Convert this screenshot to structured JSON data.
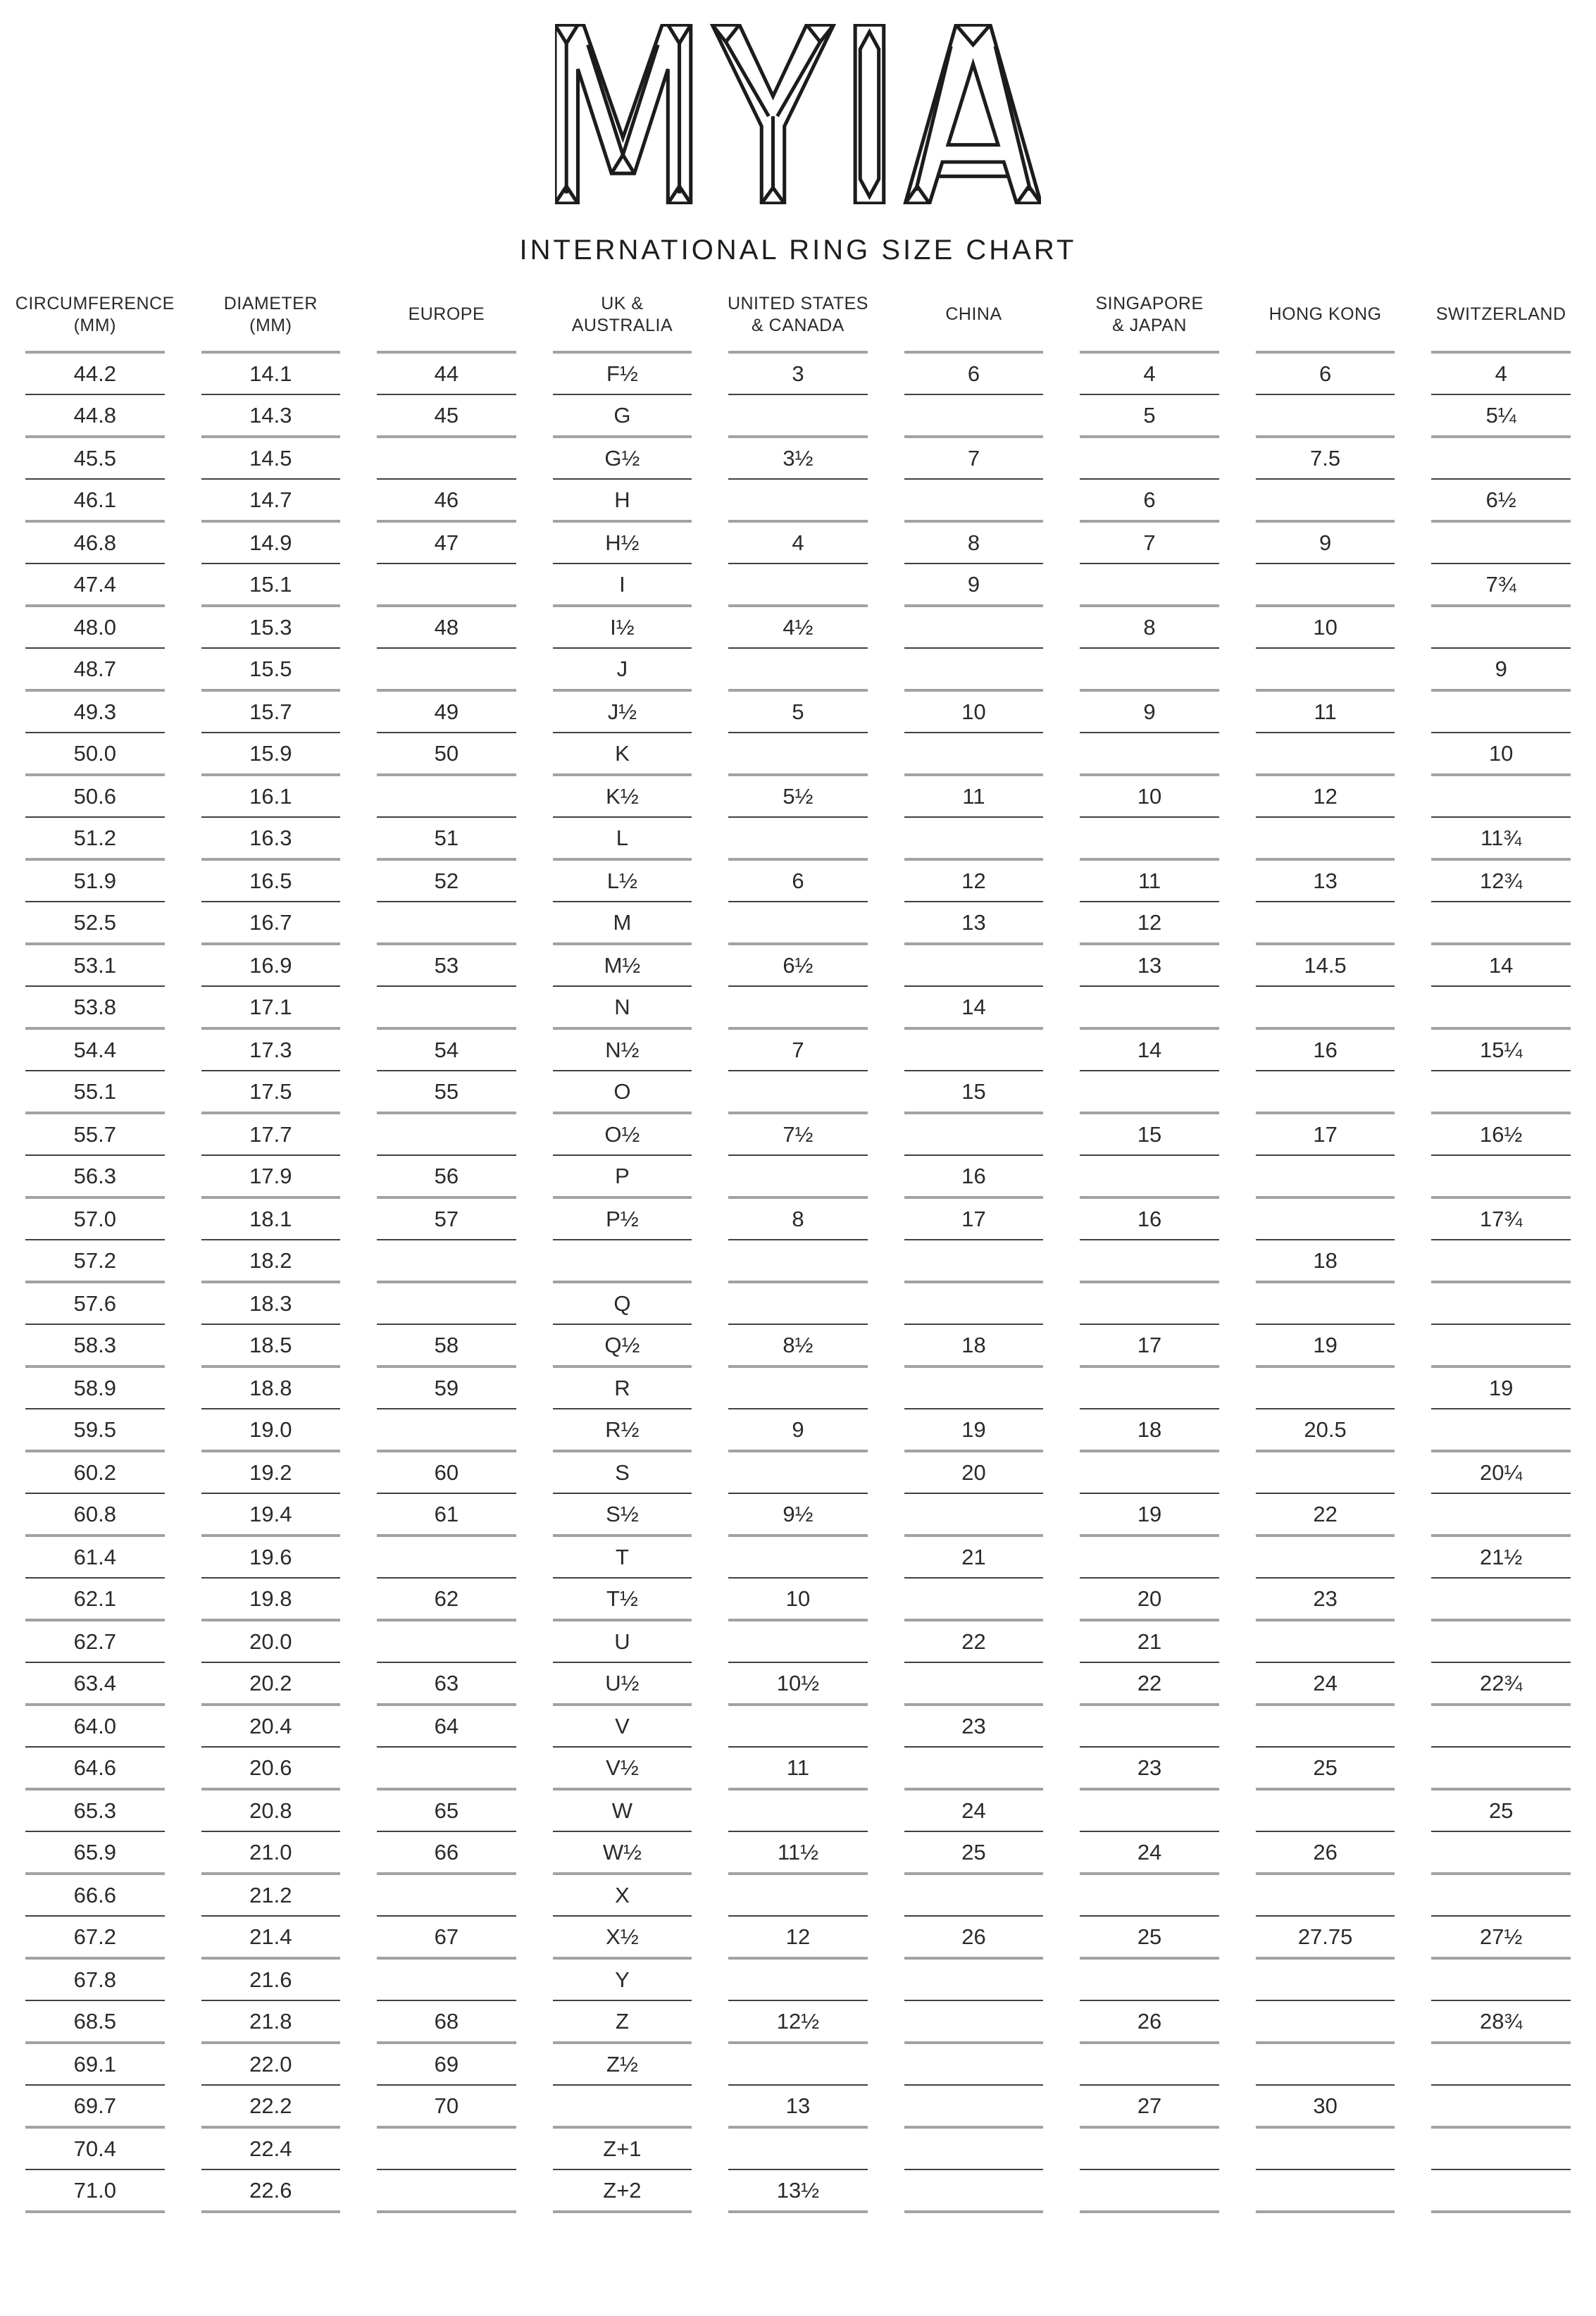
{
  "logo": {
    "brand": "MYIA",
    "title": "INTERNATIONAL RING SIZE CHART"
  },
  "table": {
    "keys": [
      "circumference_mm",
      "diameter_mm",
      "europe",
      "uk_australia",
      "us_canada",
      "china",
      "singapore_japan",
      "hong_kong",
      "switzerland"
    ],
    "headers": [
      {
        "key": "circumference_mm",
        "lines": [
          "CIRCUMFERENCE",
          "(MM)"
        ]
      },
      {
        "key": "diameter_mm",
        "lines": [
          "DIAMETER",
          "(MM)"
        ]
      },
      {
        "key": "europe",
        "lines": [
          "EUROPE"
        ]
      },
      {
        "key": "uk_australia",
        "lines": [
          "UK &",
          "AUSTRALIA"
        ]
      },
      {
        "key": "us_canada",
        "lines": [
          "UNITED STATES",
          "& CANADA"
        ]
      },
      {
        "key": "china",
        "lines": [
          "CHINA"
        ]
      },
      {
        "key": "singapore_japan",
        "lines": [
          "SINGAPORE",
          "& JAPAN"
        ]
      },
      {
        "key": "hong_kong",
        "lines": [
          "HONG KONG"
        ]
      },
      {
        "key": "switzerland",
        "lines": [
          "SWITZERLAND"
        ]
      }
    ],
    "rows": [
      [
        "44.2",
        "14.1",
        "44",
        "F½",
        "3",
        "6",
        "4",
        "6",
        "4"
      ],
      [
        "44.8",
        "14.3",
        "45",
        "G",
        "",
        "",
        "5",
        "",
        "5¼"
      ],
      [
        "45.5",
        "14.5",
        "",
        "G½",
        "3½",
        "7",
        "",
        "7.5",
        ""
      ],
      [
        "46.1",
        "14.7",
        "46",
        "H",
        "",
        "",
        "6",
        "",
        "6½"
      ],
      [
        "46.8",
        "14.9",
        "47",
        "H½",
        "4",
        "8",
        "7",
        "9",
        ""
      ],
      [
        "47.4",
        "15.1",
        "",
        "I",
        "",
        "9",
        "",
        "",
        "7¾"
      ],
      [
        "48.0",
        "15.3",
        "48",
        "I½",
        "4½",
        "",
        "8",
        "10",
        ""
      ],
      [
        "48.7",
        "15.5",
        "",
        "J",
        "",
        "",
        "",
        "",
        "9"
      ],
      [
        "49.3",
        "15.7",
        "49",
        "J½",
        "5",
        "10",
        "9",
        "11",
        ""
      ],
      [
        "50.0",
        "15.9",
        "50",
        "K",
        "",
        "",
        "",
        "",
        "10"
      ],
      [
        "50.6",
        "16.1",
        "",
        "K½",
        "5½",
        "11",
        "10",
        "12",
        ""
      ],
      [
        "51.2",
        "16.3",
        "51",
        "L",
        "",
        "",
        "",
        "",
        "11¾"
      ],
      [
        "51.9",
        "16.5",
        "52",
        "L½",
        "6",
        "12",
        "11",
        "13",
        "12¾"
      ],
      [
        "52.5",
        "16.7",
        "",
        "M",
        "",
        "13",
        "12",
        "",
        ""
      ],
      [
        "53.1",
        "16.9",
        "53",
        "M½",
        "6½",
        "",
        "13",
        "14.5",
        "14"
      ],
      [
        "53.8",
        "17.1",
        "",
        "N",
        "",
        "14",
        "",
        "",
        ""
      ],
      [
        "54.4",
        "17.3",
        "54",
        "N½",
        "7",
        "",
        "14",
        "16",
        "15¼"
      ],
      [
        "55.1",
        "17.5",
        "55",
        "O",
        "",
        "15",
        "",
        "",
        ""
      ],
      [
        "55.7",
        "17.7",
        "",
        "O½",
        "7½",
        "",
        "15",
        "17",
        "16½"
      ],
      [
        "56.3",
        "17.9",
        "56",
        "P",
        "",
        "16",
        "",
        "",
        ""
      ],
      [
        "57.0",
        "18.1",
        "57",
        "P½",
        "8",
        "17",
        "16",
        "",
        "17¾"
      ],
      [
        "57.2",
        "18.2",
        "",
        "",
        "",
        "",
        "",
        "18",
        ""
      ],
      [
        "57.6",
        "18.3",
        "",
        "Q",
        "",
        "",
        "",
        "",
        ""
      ],
      [
        "58.3",
        "18.5",
        "58",
        "Q½",
        "8½",
        "18",
        "17",
        "19",
        ""
      ],
      [
        "58.9",
        "18.8",
        "59",
        "R",
        "",
        "",
        "",
        "",
        "19"
      ],
      [
        "59.5",
        "19.0",
        "",
        "R½",
        "9",
        "19",
        "18",
        "20.5",
        ""
      ],
      [
        "60.2",
        "19.2",
        "60",
        "S",
        "",
        "20",
        "",
        "",
        "20¼"
      ],
      [
        "60.8",
        "19.4",
        "61",
        "S½",
        "9½",
        "",
        "19",
        "22",
        ""
      ],
      [
        "61.4",
        "19.6",
        "",
        "T",
        "",
        "21",
        "",
        "",
        "21½"
      ],
      [
        "62.1",
        "19.8",
        "62",
        "T½",
        "10",
        "",
        "20",
        "23",
        ""
      ],
      [
        "62.7",
        "20.0",
        "",
        "U",
        "",
        "22",
        "21",
        "",
        ""
      ],
      [
        "63.4",
        "20.2",
        "63",
        "U½",
        "10½",
        "",
        "22",
        "24",
        "22¾"
      ],
      [
        "64.0",
        "20.4",
        "64",
        "V",
        "",
        "23",
        "",
        "",
        ""
      ],
      [
        "64.6",
        "20.6",
        "",
        "V½",
        "11",
        "",
        "23",
        "25",
        ""
      ],
      [
        "65.3",
        "20.8",
        "65",
        "W",
        "",
        "24",
        "",
        "",
        "25"
      ],
      [
        "65.9",
        "21.0",
        "66",
        "W½",
        "11½",
        "25",
        "24",
        "26",
        ""
      ],
      [
        "66.6",
        "21.2",
        "",
        "X",
        "",
        "",
        "",
        "",
        ""
      ],
      [
        "67.2",
        "21.4",
        "67",
        "X½",
        "12",
        "26",
        "25",
        "27.75",
        "27½"
      ],
      [
        "67.8",
        "21.6",
        "",
        "Y",
        "",
        "",
        "",
        "",
        ""
      ],
      [
        "68.5",
        "21.8",
        "68",
        "Z",
        "12½",
        "",
        "26",
        "",
        "28¾"
      ],
      [
        "69.1",
        "22.0",
        "69",
        "Z½",
        "",
        "",
        "",
        "",
        ""
      ],
      [
        "69.7",
        "22.2",
        "70",
        "",
        "13",
        "",
        "27",
        "30",
        ""
      ],
      [
        "70.4",
        "22.4",
        "",
        "Z+1",
        "",
        "",
        "",
        "",
        ""
      ],
      [
        "71.0",
        "22.6",
        "",
        "Z+2",
        "13½",
        "",
        "",
        "",
        ""
      ]
    ]
  }
}
